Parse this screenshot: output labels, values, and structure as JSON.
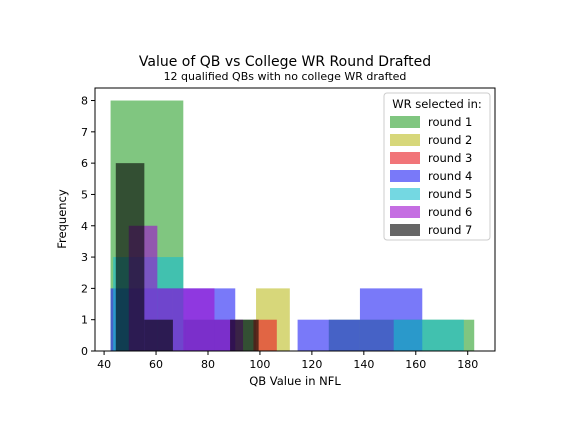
{
  "chart_data": {
    "type": "histogram",
    "title": "Value of QB vs College WR Round Drafted",
    "subtitle": "12 qualified QBs with no college WR drafted",
    "xlabel": "QB Value in NFL",
    "ylabel": "Frequency",
    "xlim": [
      36.5,
      190.5
    ],
    "ylim": [
      0,
      8.4
    ],
    "xticks": [
      40,
      60,
      80,
      100,
      120,
      140,
      160,
      180
    ],
    "yticks": [
      0,
      1,
      2,
      3,
      4,
      5,
      6,
      7,
      8
    ],
    "grid": false,
    "legend": {
      "title": "WR selected in:",
      "placement": "top-right"
    },
    "series": [
      {
        "name": "round 1",
        "color": "#2ca02c",
        "bars": [
          {
            "x0": 42.5,
            "x1": 70.5,
            "count": 8
          },
          {
            "x0": 70.5,
            "x1": 98.5,
            "count": 1
          },
          {
            "x0": 98.5,
            "x1": 126.5,
            "count": 0
          },
          {
            "x0": 126.5,
            "x1": 154.5,
            "count": 1
          },
          {
            "x0": 154.5,
            "x1": 182.5,
            "count": 1
          }
        ]
      },
      {
        "name": "round 2",
        "color": "#bcbd22",
        "bars": [
          {
            "x0": 98.5,
            "x1": 111.5,
            "count": 2
          }
        ]
      },
      {
        "name": "round 3",
        "color": "#e8191f",
        "bars": [
          {
            "x0": 97.5,
            "x1": 106.5,
            "count": 1
          }
        ]
      },
      {
        "name": "round 4",
        "color": "#1f1ff5",
        "bars": [
          {
            "x0": 42.5,
            "x1": 66.5,
            "count": 2
          },
          {
            "x0": 66.5,
            "x1": 90.5,
            "count": 2
          },
          {
            "x0": 90.5,
            "x1": 114.5,
            "count": 0
          },
          {
            "x0": 114.5,
            "x1": 138.5,
            "count": 1
          },
          {
            "x0": 138.5,
            "x1": 162.5,
            "count": 2
          }
        ]
      },
      {
        "name": "round 5",
        "color": "#17becf",
        "bars": [
          {
            "x0": 43.5,
            "x1": 70.5,
            "count": 3
          },
          {
            "x0": 70.5,
            "x1": 97.5,
            "count": 0
          },
          {
            "x0": 97.5,
            "x1": 124.5,
            "count": 0
          },
          {
            "x0": 124.5,
            "x1": 151.5,
            "count": 0
          },
          {
            "x0": 151.5,
            "x1": 178.5,
            "count": 1
          }
        ]
      },
      {
        "name": "round 6",
        "color": "#9f0dcf",
        "bars": [
          {
            "x0": 49.5,
            "x1": 60.5,
            "count": 4
          },
          {
            "x0": 60.5,
            "x1": 71.5,
            "count": 2
          },
          {
            "x0": 71.5,
            "x1": 82.5,
            "count": 2
          },
          {
            "x0": 82.5,
            "x1": 93.5,
            "count": 1
          }
        ]
      },
      {
        "name": "round 7",
        "color": "#000000",
        "bars": [
          {
            "x0": 44.5,
            "x1": 55.5,
            "count": 6
          },
          {
            "x0": 55.5,
            "x1": 66.5,
            "count": 1
          },
          {
            "x0": 66.5,
            "x1": 77.5,
            "count": 0
          },
          {
            "x0": 77.5,
            "x1": 88.5,
            "count": 0
          },
          {
            "x0": 88.5,
            "x1": 99.5,
            "count": 1
          }
        ]
      }
    ]
  }
}
